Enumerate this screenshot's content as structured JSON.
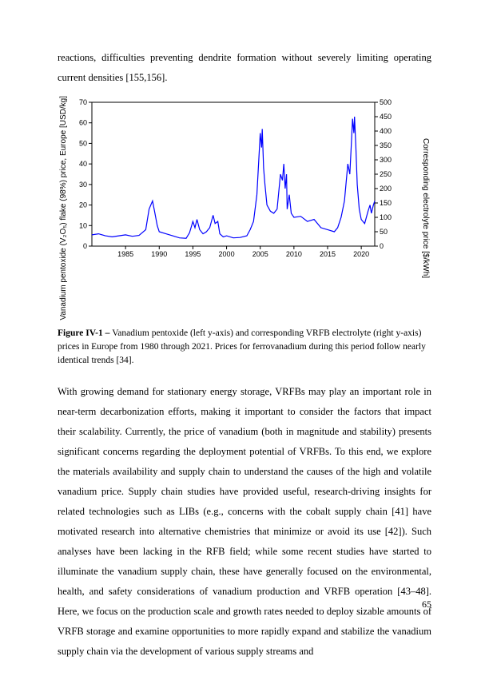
{
  "intro_paragraph": "reactions, difficulties preventing dendrite formation without severely limiting operating current densities [155,156].",
  "figure": {
    "type": "line",
    "line_color": "#0000ff",
    "axis_color": "#000000",
    "background_color": "#ffffff",
    "tick_font_size": 9,
    "label_font_size": 10,
    "x": {
      "min": 1980,
      "max": 2022,
      "ticks": [
        1985,
        1990,
        1995,
        2000,
        2005,
        2010,
        2015,
        2020
      ]
    },
    "y_left": {
      "label": "Vanadium pentoxide (V₂O₅) flake (98%) price, Europe [USD/kg]",
      "min": 0,
      "max": 70,
      "ticks": [
        0,
        10,
        20,
        30,
        40,
        50,
        60,
        70
      ]
    },
    "y_right": {
      "label": "Corresponding electrolyte price [$/kWh]",
      "min": 0,
      "max": 500,
      "ticks": [
        0,
        50,
        100,
        150,
        200,
        250,
        300,
        350,
        400,
        450,
        500
      ]
    },
    "series": [
      [
        1980,
        5.5
      ],
      [
        1981,
        6
      ],
      [
        1982,
        5
      ],
      [
        1983,
        4.5
      ],
      [
        1984,
        5
      ],
      [
        1985,
        5.5
      ],
      [
        1986,
        4.8
      ],
      [
        1987,
        5.2
      ],
      [
        1988,
        8
      ],
      [
        1988.5,
        18
      ],
      [
        1989,
        22
      ],
      [
        1989.3,
        17
      ],
      [
        1989.7,
        10
      ],
      [
        1990,
        7
      ],
      [
        1991,
        6
      ],
      [
        1992,
        5
      ],
      [
        1993,
        4
      ],
      [
        1994,
        3.8
      ],
      [
        1994.5,
        6.5
      ],
      [
        1995,
        12
      ],
      [
        1995.3,
        9
      ],
      [
        1995.6,
        13
      ],
      [
        1996,
        8
      ],
      [
        1996.5,
        6
      ],
      [
        1997,
        7
      ],
      [
        1997.5,
        9
      ],
      [
        1998,
        15
      ],
      [
        1998.3,
        11
      ],
      [
        1998.7,
        12
      ],
      [
        1999,
        6
      ],
      [
        1999.5,
        4.5
      ],
      [
        2000,
        5
      ],
      [
        2001,
        4
      ],
      [
        2002,
        4.2
      ],
      [
        2003,
        5
      ],
      [
        2003.5,
        8
      ],
      [
        2004,
        12
      ],
      [
        2004.5,
        25
      ],
      [
        2005,
        55
      ],
      [
        2005.2,
        48
      ],
      [
        2005.3,
        57
      ],
      [
        2005.5,
        38
      ],
      [
        2005.7,
        30
      ],
      [
        2006,
        20
      ],
      [
        2006.5,
        17
      ],
      [
        2007,
        16
      ],
      [
        2007.5,
        18
      ],
      [
        2008,
        35
      ],
      [
        2008.3,
        32
      ],
      [
        2008.5,
        40
      ],
      [
        2008.7,
        28
      ],
      [
        2008.9,
        35
      ],
      [
        2009,
        18
      ],
      [
        2009.3,
        25
      ],
      [
        2009.6,
        16
      ],
      [
        2010,
        14
      ],
      [
        2011,
        14.5
      ],
      [
        2012,
        12
      ],
      [
        2013,
        13
      ],
      [
        2014,
        9
      ],
      [
        2015,
        8
      ],
      [
        2016,
        7
      ],
      [
        2016.5,
        9
      ],
      [
        2017,
        14
      ],
      [
        2017.5,
        22
      ],
      [
        2018,
        40
      ],
      [
        2018.3,
        35
      ],
      [
        2018.5,
        48
      ],
      [
        2018.7,
        62
      ],
      [
        2018.9,
        55
      ],
      [
        2019,
        63
      ],
      [
        2019.2,
        48
      ],
      [
        2019.4,
        30
      ],
      [
        2019.7,
        18
      ],
      [
        2020,
        13
      ],
      [
        2020.5,
        11
      ],
      [
        2021,
        17
      ],
      [
        2021.3,
        20
      ],
      [
        2021.5,
        16
      ],
      [
        2021.8,
        20
      ],
      [
        2022,
        22
      ]
    ]
  },
  "caption_label": "Figure IV-1 – ",
  "caption_text": "Vanadium pentoxide (left y-axis) and corresponding VRFB electrolyte (right y-axis) prices in Europe from 1980 through 2021. Prices for ferrovanadium during this period follow nearly identical trends [34].",
  "body_paragraph": "With growing demand for stationary energy storage, VRFBs may play an important role in near-term decarbonization efforts, making it important to consider the factors that impact their scalability. Currently, the price of vanadium (both in magnitude and stability) presents significant concerns regarding the deployment potential of VRFBs. To this end, we explore the materials availability and supply chain to understand the causes of the high and volatile vanadium price. Supply chain studies have provided useful, research-driving insights for related technologies such as LIBs (e.g., concerns with the cobalt supply chain [41] have motivated research into alternative chemistries that minimize or avoid its use [42]). Such analyses have been lacking in the RFB field; while some recent studies have started to illuminate the vanadium supply chain, these have generally focused on the environmental, health, and safety considerations of vanadium production and VRFB operation [43–48]. Here, we focus on the production scale and growth rates needed to deploy sizable amounts of VRFB storage and examine opportunities to more rapidly expand and stabilize the vanadium supply chain via the development of various supply streams and",
  "page_number": "65"
}
